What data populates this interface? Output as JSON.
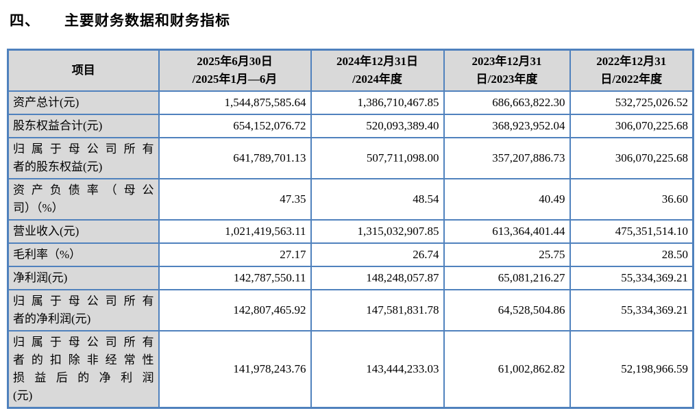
{
  "page": {
    "section_number": "四、",
    "section_title": "主要财务数据和财务指标"
  },
  "colors": {
    "table_border": "#4f81bd",
    "header_bg": "#d9d9d9",
    "text": "#000000"
  },
  "table": {
    "header": {
      "item": "项目",
      "periods": [
        {
          "line1": "2025年6月30日",
          "line2": "/2025年1月—6月"
        },
        {
          "line1": "2024年12月31日",
          "line2": "/2024年度"
        },
        {
          "line1": "2023年12月31",
          "line2": "日/2023年度"
        },
        {
          "line1": "2022年12月31",
          "line2": "日/2022年度"
        }
      ]
    },
    "rows": [
      {
        "label_lines": [
          "资产总计(元)"
        ],
        "values": [
          "1,544,875,585.64",
          "1,386,710,467.85",
          "686,663,822.30",
          "532,725,026.52"
        ]
      },
      {
        "label_lines": [
          "股东权益合计(元)"
        ],
        "values": [
          "654,152,076.72",
          "520,093,389.40",
          "368,923,952.04",
          "306,070,225.68"
        ]
      },
      {
        "label_lines": [
          "归属于母公司所有",
          "者的股东权益(元)"
        ],
        "values": [
          "641,789,701.13",
          "507,711,098.00",
          "357,207,886.73",
          "306,070,225.68"
        ]
      },
      {
        "label_lines": [
          "资产负债率（母公",
          "司）（%）"
        ],
        "values": [
          "47.35",
          "48.54",
          "40.49",
          "36.60"
        ]
      },
      {
        "label_lines": [
          "营业收入(元)"
        ],
        "values": [
          "1,021,419,563.11",
          "1,315,032,907.85",
          "613,364,401.44",
          "475,351,514.10"
        ]
      },
      {
        "label_lines": [
          "毛利率（%）"
        ],
        "values": [
          "27.17",
          "26.74",
          "25.75",
          "28.50"
        ]
      },
      {
        "label_lines": [
          "净利润(元)"
        ],
        "values": [
          "142,787,550.11",
          "148,248,057.87",
          "65,081,216.27",
          "55,334,369.21"
        ]
      },
      {
        "label_lines": [
          "归属于母公司所有",
          "者的净利润(元)"
        ],
        "values": [
          "142,807,465.92",
          "147,581,831.78",
          "64,528,504.86",
          "55,334,369.21"
        ]
      },
      {
        "label_lines": [
          "归属于母公司所有",
          "者的扣除非经常性",
          "损益后的净利润",
          "(元)"
        ],
        "values": [
          "141,978,243.76",
          "143,444,233.03",
          "61,002,862.82",
          "52,198,966.59"
        ]
      }
    ]
  }
}
